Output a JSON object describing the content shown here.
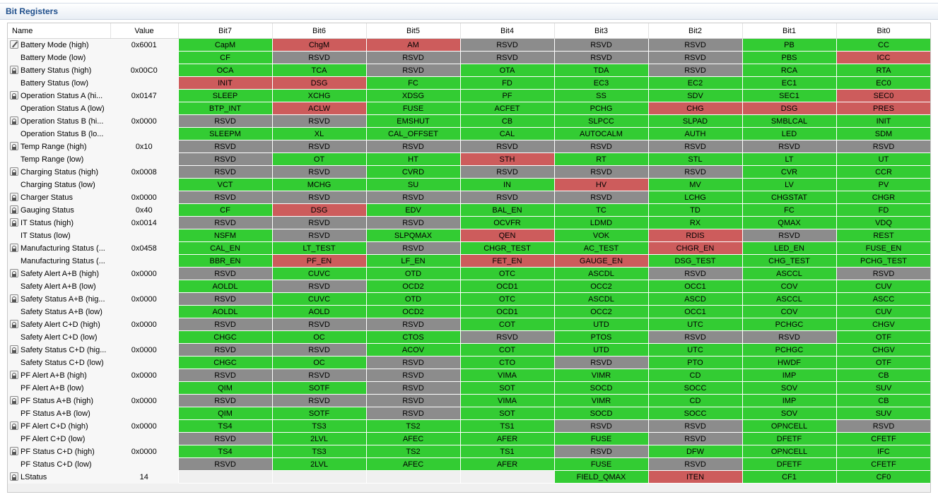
{
  "panel_title": "Bit Registers",
  "headers": [
    "Name",
    "Value",
    "Bit7",
    "Bit6",
    "Bit5",
    "Bit4",
    "Bit3",
    "Bit2",
    "Bit1",
    "Bit0"
  ],
  "status_colors": {
    "g": "#33cc33",
    "r": "#cd5c5c",
    "y": "#8c8c8c"
  },
  "rows": [
    {
      "name": "Battery Mode (high)",
      "value": "0x6001",
      "icon": "edit",
      "bits": [
        [
          "CapM",
          "g"
        ],
        [
          "ChgM",
          "r"
        ],
        [
          "AM",
          "r"
        ],
        [
          "RSVD",
          "y"
        ],
        [
          "RSVD",
          "y"
        ],
        [
          "RSVD",
          "y"
        ],
        [
          "PB",
          "g"
        ],
        [
          "CC",
          "g"
        ]
      ]
    },
    {
      "name": "Battery Mode (low)",
      "value": "",
      "icon": "",
      "bits": [
        [
          "CF",
          "g"
        ],
        [
          "RSVD",
          "y"
        ],
        [
          "RSVD",
          "y"
        ],
        [
          "RSVD",
          "y"
        ],
        [
          "RSVD",
          "y"
        ],
        [
          "RSVD",
          "y"
        ],
        [
          "PBS",
          "g"
        ],
        [
          "ICC",
          "r"
        ]
      ]
    },
    {
      "name": "Battery Status (high)",
      "value": "0x00C0",
      "icon": "lock",
      "bits": [
        [
          "OCA",
          "g"
        ],
        [
          "TCA",
          "g"
        ],
        [
          "RSVD",
          "y"
        ],
        [
          "OTA",
          "g"
        ],
        [
          "TDA",
          "g"
        ],
        [
          "RSVD",
          "y"
        ],
        [
          "RCA",
          "g"
        ],
        [
          "RTA",
          "g"
        ]
      ]
    },
    {
      "name": "Battery Status (low)",
      "value": "",
      "icon": "",
      "bits": [
        [
          "INIT",
          "r"
        ],
        [
          "DSG",
          "r"
        ],
        [
          "FC",
          "g"
        ],
        [
          "FD",
          "g"
        ],
        [
          "EC3",
          "g"
        ],
        [
          "EC2",
          "g"
        ],
        [
          "EC1",
          "g"
        ],
        [
          "EC0",
          "g"
        ]
      ]
    },
    {
      "name": "Operation Status A (hi...",
      "value": "0x0147",
      "icon": "lock",
      "bits": [
        [
          "SLEEP",
          "g"
        ],
        [
          "XCHG",
          "g"
        ],
        [
          "XDSG",
          "g"
        ],
        [
          "PF",
          "g"
        ],
        [
          "SS",
          "g"
        ],
        [
          "SDV",
          "g"
        ],
        [
          "SEC1",
          "g"
        ],
        [
          "SEC0",
          "r"
        ]
      ]
    },
    {
      "name": "Operation Status A (low)",
      "value": "",
      "icon": "",
      "bits": [
        [
          "BTP_INT",
          "g"
        ],
        [
          "ACLW",
          "r"
        ],
        [
          "FUSE",
          "g"
        ],
        [
          "ACFET",
          "g"
        ],
        [
          "PCHG",
          "g"
        ],
        [
          "CHG",
          "r"
        ],
        [
          "DSG",
          "r"
        ],
        [
          "PRES",
          "r"
        ]
      ]
    },
    {
      "name": "Operation Status B (hi...",
      "value": "0x0000",
      "icon": "lock",
      "bits": [
        [
          "RSVD",
          "y"
        ],
        [
          "RSVD",
          "y"
        ],
        [
          "EMSHUT",
          "g"
        ],
        [
          "CB",
          "g"
        ],
        [
          "SLPCC",
          "g"
        ],
        [
          "SLPAD",
          "g"
        ],
        [
          "SMBLCAL",
          "g"
        ],
        [
          "INIT",
          "g"
        ]
      ]
    },
    {
      "name": "Operation Status B (lo...",
      "value": "",
      "icon": "",
      "bits": [
        [
          "SLEEPM",
          "g"
        ],
        [
          "XL",
          "g"
        ],
        [
          "CAL_OFFSET",
          "g"
        ],
        [
          "CAL",
          "g"
        ],
        [
          "AUTOCALM",
          "g"
        ],
        [
          "AUTH",
          "g"
        ],
        [
          "LED",
          "g"
        ],
        [
          "SDM",
          "g"
        ]
      ]
    },
    {
      "name": "Temp Range (high)",
      "value": "0x10",
      "icon": "lock",
      "bits": [
        [
          "RSVD",
          "y"
        ],
        [
          "RSVD",
          "y"
        ],
        [
          "RSVD",
          "y"
        ],
        [
          "RSVD",
          "y"
        ],
        [
          "RSVD",
          "y"
        ],
        [
          "RSVD",
          "y"
        ],
        [
          "RSVD",
          "y"
        ],
        [
          "RSVD",
          "y"
        ]
      ]
    },
    {
      "name": "Temp Range (low)",
      "value": "",
      "icon": "",
      "bits": [
        [
          "RSVD",
          "y"
        ],
        [
          "OT",
          "g"
        ],
        [
          "HT",
          "g"
        ],
        [
          "STH",
          "r"
        ],
        [
          "RT",
          "g"
        ],
        [
          "STL",
          "g"
        ],
        [
          "LT",
          "g"
        ],
        [
          "UT",
          "g"
        ]
      ]
    },
    {
      "name": "Charging Status (high)",
      "value": "0x0008",
      "icon": "lock",
      "bits": [
        [
          "RSVD",
          "y"
        ],
        [
          "RSVD",
          "y"
        ],
        [
          "CVRD",
          "g"
        ],
        [
          "RSVD",
          "y"
        ],
        [
          "RSVD",
          "y"
        ],
        [
          "RSVD",
          "y"
        ],
        [
          "CVR",
          "g"
        ],
        [
          "CCR",
          "g"
        ]
      ]
    },
    {
      "name": "Charging Status (low)",
      "value": "",
      "icon": "",
      "bits": [
        [
          "VCT",
          "g"
        ],
        [
          "MCHG",
          "g"
        ],
        [
          "SU",
          "g"
        ],
        [
          "IN",
          "g"
        ],
        [
          "HV",
          "r"
        ],
        [
          "MV",
          "g"
        ],
        [
          "LV",
          "g"
        ],
        [
          "PV",
          "g"
        ]
      ]
    },
    {
      "name": "Charger Status",
      "value": "0x0000",
      "icon": "lock",
      "bits": [
        [
          "RSVD",
          "y"
        ],
        [
          "RSVD",
          "y"
        ],
        [
          "RSVD",
          "y"
        ],
        [
          "RSVD",
          "y"
        ],
        [
          "RSVD",
          "y"
        ],
        [
          "LCHG",
          "g"
        ],
        [
          "CHGSTAT",
          "g"
        ],
        [
          "CHGR",
          "g"
        ]
      ]
    },
    {
      "name": "Gauging Status",
      "value": "0x40",
      "icon": "lock",
      "bits": [
        [
          "CF",
          "g"
        ],
        [
          "DSG",
          "r"
        ],
        [
          "EDV",
          "g"
        ],
        [
          "BAL_EN",
          "g"
        ],
        [
          "TC",
          "g"
        ],
        [
          "TD",
          "g"
        ],
        [
          "FC",
          "g"
        ],
        [
          "FD",
          "g"
        ]
      ]
    },
    {
      "name": "IT Status (high)",
      "value": "0x0014",
      "icon": "lock",
      "bits": [
        [
          "RSVD",
          "y"
        ],
        [
          "RSVD",
          "y"
        ],
        [
          "RSVD",
          "y"
        ],
        [
          "OCVFR",
          "g"
        ],
        [
          "LDMD",
          "g"
        ],
        [
          "RX",
          "g"
        ],
        [
          "QMAX",
          "g"
        ],
        [
          "VDQ",
          "g"
        ]
      ]
    },
    {
      "name": "IT Status (low)",
      "value": "",
      "icon": "",
      "bits": [
        [
          "NSFM",
          "g"
        ],
        [
          "RSVD",
          "y"
        ],
        [
          "SLPQMAX",
          "g"
        ],
        [
          "QEN",
          "r"
        ],
        [
          "VOK",
          "g"
        ],
        [
          "RDIS",
          "r"
        ],
        [
          "RSVD",
          "y"
        ],
        [
          "REST",
          "g"
        ]
      ]
    },
    {
      "name": "Manufacturing Status (...",
      "value": "0x0458",
      "icon": "lock",
      "bits": [
        [
          "CAL_EN",
          "g"
        ],
        [
          "LT_TEST",
          "g"
        ],
        [
          "RSVD",
          "y"
        ],
        [
          "CHGR_TEST",
          "g"
        ],
        [
          "AC_TEST",
          "g"
        ],
        [
          "CHGR_EN",
          "r"
        ],
        [
          "LED_EN",
          "g"
        ],
        [
          "FUSE_EN",
          "g"
        ]
      ]
    },
    {
      "name": "Manufacturing Status (...",
      "value": "",
      "icon": "",
      "bits": [
        [
          "BBR_EN",
          "g"
        ],
        [
          "PF_EN",
          "r"
        ],
        [
          "LF_EN",
          "g"
        ],
        [
          "FET_EN",
          "r"
        ],
        [
          "GAUGE_EN",
          "r"
        ],
        [
          "DSG_TEST",
          "g"
        ],
        [
          "CHG_TEST",
          "g"
        ],
        [
          "PCHG_TEST",
          "g"
        ]
      ]
    },
    {
      "name": "Safety Alert A+B (high)",
      "value": "0x0000",
      "icon": "lock",
      "bits": [
        [
          "RSVD",
          "y"
        ],
        [
          "CUVC",
          "g"
        ],
        [
          "OTD",
          "g"
        ],
        [
          "OTC",
          "g"
        ],
        [
          "ASCDL",
          "g"
        ],
        [
          "RSVD",
          "y"
        ],
        [
          "ASCCL",
          "g"
        ],
        [
          "RSVD",
          "y"
        ]
      ]
    },
    {
      "name": "Safety Alert A+B (low)",
      "value": "",
      "icon": "",
      "bits": [
        [
          "AOLDL",
          "g"
        ],
        [
          "RSVD",
          "y"
        ],
        [
          "OCD2",
          "g"
        ],
        [
          "OCD1",
          "g"
        ],
        [
          "OCC2",
          "g"
        ],
        [
          "OCC1",
          "g"
        ],
        [
          "COV",
          "g"
        ],
        [
          "CUV",
          "g"
        ]
      ]
    },
    {
      "name": "Safety Status A+B (hig...",
      "value": "0x0000",
      "icon": "lock",
      "bits": [
        [
          "RSVD",
          "y"
        ],
        [
          "CUVC",
          "g"
        ],
        [
          "OTD",
          "g"
        ],
        [
          "OTC",
          "g"
        ],
        [
          "ASCDL",
          "g"
        ],
        [
          "ASCD",
          "g"
        ],
        [
          "ASCCL",
          "g"
        ],
        [
          "ASCC",
          "g"
        ]
      ]
    },
    {
      "name": "Safety Status A+B (low)",
      "value": "",
      "icon": "",
      "bits": [
        [
          "AOLDL",
          "g"
        ],
        [
          "AOLD",
          "g"
        ],
        [
          "OCD2",
          "g"
        ],
        [
          "OCD1",
          "g"
        ],
        [
          "OCC2",
          "g"
        ],
        [
          "OCC1",
          "g"
        ],
        [
          "COV",
          "g"
        ],
        [
          "CUV",
          "g"
        ]
      ]
    },
    {
      "name": "Safety Alert C+D (high)",
      "value": "0x0000",
      "icon": "lock",
      "bits": [
        [
          "RSVD",
          "y"
        ],
        [
          "RSVD",
          "y"
        ],
        [
          "RSVD",
          "y"
        ],
        [
          "COT",
          "g"
        ],
        [
          "UTD",
          "g"
        ],
        [
          "UTC",
          "g"
        ],
        [
          "PCHGC",
          "g"
        ],
        [
          "CHGV",
          "g"
        ]
      ]
    },
    {
      "name": "Safety Alert C+D (low)",
      "value": "",
      "icon": "",
      "bits": [
        [
          "CHGC",
          "g"
        ],
        [
          "OC",
          "g"
        ],
        [
          "CTOS",
          "g"
        ],
        [
          "RSVD",
          "y"
        ],
        [
          "PTOS",
          "g"
        ],
        [
          "RSVD",
          "y"
        ],
        [
          "RSVD",
          "y"
        ],
        [
          "OTF",
          "g"
        ]
      ]
    },
    {
      "name": "Safety Status C+D (hig...",
      "value": "0x0000",
      "icon": "lock",
      "bits": [
        [
          "RSVD",
          "y"
        ],
        [
          "RSVD",
          "y"
        ],
        [
          "ACOV",
          "g"
        ],
        [
          "COT",
          "g"
        ],
        [
          "UTD",
          "g"
        ],
        [
          "UTC",
          "g"
        ],
        [
          "PCHGC",
          "g"
        ],
        [
          "CHGV",
          "g"
        ]
      ]
    },
    {
      "name": "Safety Status C+D (low)",
      "value": "",
      "icon": "",
      "bits": [
        [
          "CHGC",
          "g"
        ],
        [
          "OC",
          "g"
        ],
        [
          "RSVD",
          "y"
        ],
        [
          "CTO",
          "g"
        ],
        [
          "RSVD",
          "y"
        ],
        [
          "PTO",
          "g"
        ],
        [
          "HWDF",
          "g"
        ],
        [
          "OTF",
          "g"
        ]
      ]
    },
    {
      "name": "PF Alert A+B (high)",
      "value": "0x0000",
      "icon": "lock",
      "bits": [
        [
          "RSVD",
          "y"
        ],
        [
          "RSVD",
          "y"
        ],
        [
          "RSVD",
          "y"
        ],
        [
          "VIMA",
          "g"
        ],
        [
          "VIMR",
          "g"
        ],
        [
          "CD",
          "g"
        ],
        [
          "IMP",
          "g"
        ],
        [
          "CB",
          "g"
        ]
      ]
    },
    {
      "name": "PF Alert A+B (low)",
      "value": "",
      "icon": "",
      "bits": [
        [
          "QIM",
          "g"
        ],
        [
          "SOTF",
          "g"
        ],
        [
          "RSVD",
          "y"
        ],
        [
          "SOT",
          "g"
        ],
        [
          "SOCD",
          "g"
        ],
        [
          "SOCC",
          "g"
        ],
        [
          "SOV",
          "g"
        ],
        [
          "SUV",
          "g"
        ]
      ]
    },
    {
      "name": "PF Status A+B (high)",
      "value": "0x0000",
      "icon": "lock",
      "bits": [
        [
          "RSVD",
          "y"
        ],
        [
          "RSVD",
          "y"
        ],
        [
          "RSVD",
          "y"
        ],
        [
          "VIMA",
          "g"
        ],
        [
          "VIMR",
          "g"
        ],
        [
          "CD",
          "g"
        ],
        [
          "IMP",
          "g"
        ],
        [
          "CB",
          "g"
        ]
      ]
    },
    {
      "name": "PF Status A+B (low)",
      "value": "",
      "icon": "",
      "bits": [
        [
          "QIM",
          "g"
        ],
        [
          "SOTF",
          "g"
        ],
        [
          "RSVD",
          "y"
        ],
        [
          "SOT",
          "g"
        ],
        [
          "SOCD",
          "g"
        ],
        [
          "SOCC",
          "g"
        ],
        [
          "SOV",
          "g"
        ],
        [
          "SUV",
          "g"
        ]
      ]
    },
    {
      "name": "PF Alert C+D (high)",
      "value": "0x0000",
      "icon": "lock",
      "bits": [
        [
          "TS4",
          "g"
        ],
        [
          "TS3",
          "g"
        ],
        [
          "TS2",
          "g"
        ],
        [
          "TS1",
          "g"
        ],
        [
          "RSVD",
          "y"
        ],
        [
          "RSVD",
          "y"
        ],
        [
          "OPNCELL",
          "g"
        ],
        [
          "RSVD",
          "y"
        ]
      ]
    },
    {
      "name": "PF Alert C+D (low)",
      "value": "",
      "icon": "",
      "bits": [
        [
          "RSVD",
          "y"
        ],
        [
          "2LVL",
          "g"
        ],
        [
          "AFEC",
          "g"
        ],
        [
          "AFER",
          "g"
        ],
        [
          "FUSE",
          "g"
        ],
        [
          "RSVD",
          "y"
        ],
        [
          "DFETF",
          "g"
        ],
        [
          "CFETF",
          "g"
        ]
      ]
    },
    {
      "name": "PF Status C+D (high)",
      "value": "0x0000",
      "icon": "lock",
      "bits": [
        [
          "TS4",
          "g"
        ],
        [
          "TS3",
          "g"
        ],
        [
          "TS2",
          "g"
        ],
        [
          "TS1",
          "g"
        ],
        [
          "RSVD",
          "y"
        ],
        [
          "DFW",
          "g"
        ],
        [
          "OPNCELL",
          "g"
        ],
        [
          "IFC",
          "g"
        ]
      ]
    },
    {
      "name": "PF Status C+D (low)",
      "value": "",
      "icon": "",
      "bits": [
        [
          "RSVD",
          "y"
        ],
        [
          "2LVL",
          "g"
        ],
        [
          "AFEC",
          "g"
        ],
        [
          "AFER",
          "g"
        ],
        [
          "FUSE",
          "g"
        ],
        [
          "RSVD",
          "y"
        ],
        [
          "DFETF",
          "g"
        ],
        [
          "CFETF",
          "g"
        ]
      ]
    },
    {
      "name": "LStatus",
      "value": "14",
      "icon": "lock",
      "bits": [
        [
          "",
          "e"
        ],
        [
          "",
          "e"
        ],
        [
          "",
          "e"
        ],
        [
          "",
          "e"
        ],
        [
          "FIELD_QMAX",
          "g"
        ],
        [
          "ITEN",
          "r"
        ],
        [
          "CF1",
          "g"
        ],
        [
          "CF0",
          "g"
        ]
      ]
    }
  ]
}
